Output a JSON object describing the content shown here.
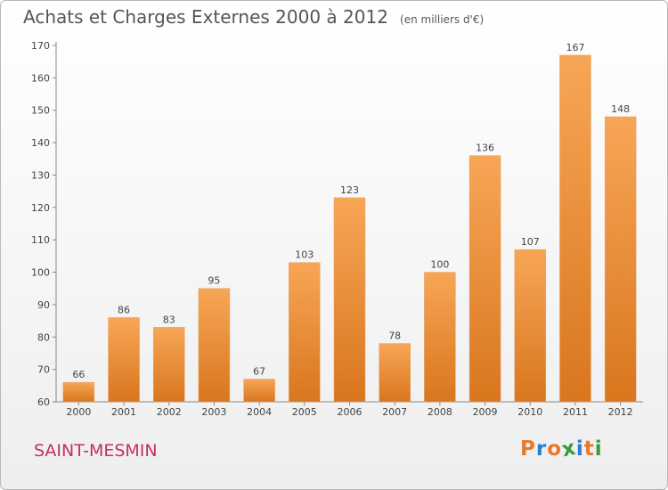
{
  "chart_data": {
    "type": "bar",
    "title": "Achats et Charges Externes 2000 à 2012",
    "unit": "(en milliers d'€)",
    "categories": [
      "2000",
      "2001",
      "2002",
      "2003",
      "2004",
      "2005",
      "2006",
      "2007",
      "2008",
      "2009",
      "2010",
      "2011",
      "2012"
    ],
    "values": [
      66,
      86,
      83,
      95,
      67,
      103,
      123,
      78,
      100,
      136,
      107,
      167,
      148
    ],
    "ylim": [
      60,
      170
    ],
    "yticks": [
      60,
      70,
      80,
      90,
      100,
      110,
      120,
      130,
      140,
      150,
      160,
      170
    ],
    "grid": false,
    "bar_color_top": "#f7a656",
    "bar_color_bottom": "#d9761e"
  },
  "footer": {
    "town": "SAINT-MESMIN",
    "logo_letters": [
      "P",
      "r",
      "o",
      "x",
      "i",
      "t",
      "i"
    ],
    "logo_colors": [
      "#e8792a",
      "#2a7fd0",
      "#e8792a",
      "#3a9a3a",
      "#2a7fd0",
      "#e8792a",
      "#3a9a3a"
    ],
    "town_color": "#c3305f"
  }
}
